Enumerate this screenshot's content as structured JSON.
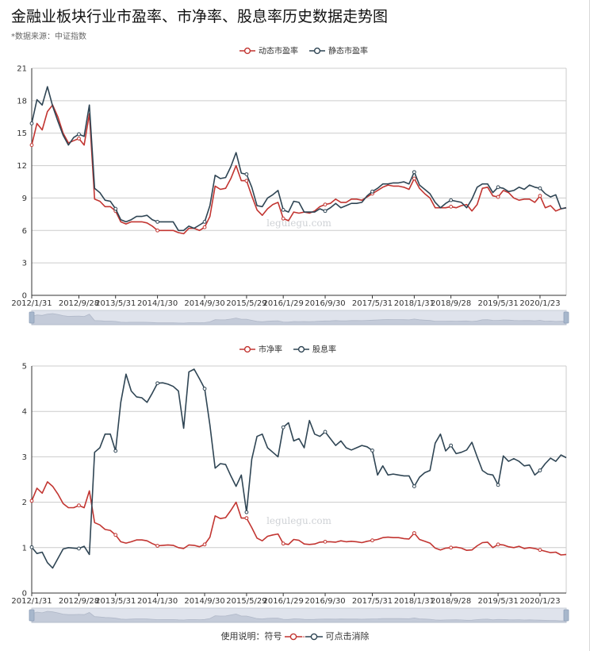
{
  "page": {
    "title": "金融业板块行业市盈率、市净率、股息率历史数据走势图",
    "source_note": "*数据来源：中证指数",
    "watermark": "legulegu.com",
    "usage_note_prefix": "使用说明：符号",
    "usage_note_suffix": "可点击消除"
  },
  "colors": {
    "red": "#c23531",
    "dark": "#2f4554",
    "grid": "#cccccc",
    "axis": "#333333",
    "zoom_fill": "#dfe3ec",
    "zoom_border": "#c7ccd6",
    "zoom_handle": "#a7b7cc"
  },
  "chart_data": [
    {
      "type": "line",
      "x_labels": [
        "2012/1/31",
        "2012/9/28",
        "2013/5/31",
        "2014/1/30",
        "2014/9/30",
        "2015/5/29",
        "2016/1/29",
        "2016/9/30",
        "2017/5/31",
        "2018/1/31",
        "2018/9/28",
        "2019/5/31",
        "2020/1/23"
      ],
      "ylim": [
        0,
        21
      ],
      "yticks": [
        0,
        3,
        6,
        9,
        12,
        15,
        18,
        21
      ],
      "grid": true,
      "legend_position": "top-center",
      "series": [
        {
          "name": "动态市盈率",
          "color": "#c23531",
          "values": [
            13.9,
            15.9,
            15.3,
            17.0,
            17.6,
            16.5,
            15.0,
            14.1,
            14.3,
            14.5,
            13.9,
            16.8,
            8.9,
            8.7,
            8.2,
            8.2,
            7.8,
            6.8,
            6.6,
            6.8,
            6.8,
            6.8,
            6.7,
            6.4,
            6.0,
            6.0,
            6.0,
            6.0,
            5.8,
            5.7,
            6.2,
            6.2,
            6.0,
            6.3,
            7.3,
            10.1,
            9.8,
            9.9,
            10.8,
            12.0,
            10.6,
            10.6,
            9.2,
            7.9,
            7.4,
            8.0,
            8.4,
            8.6,
            7.1,
            6.9,
            7.7,
            7.6,
            7.7,
            7.6,
            7.8,
            8.2,
            8.4,
            8.5,
            8.9,
            8.6,
            8.6,
            8.9,
            8.9,
            8.8,
            9.1,
            9.4,
            9.7,
            10.0,
            10.2,
            10.1,
            10.1,
            10.0,
            9.8,
            10.8,
            9.9,
            9.4,
            9.0,
            8.1,
            8.1,
            8.1,
            8.2,
            8.1,
            8.3,
            8.4,
            7.8,
            8.4,
            9.9,
            10.0,
            9.2,
            9.1,
            9.7,
            9.5,
            9.0,
            8.8,
            8.9,
            8.9,
            8.6,
            9.2,
            8.1,
            8.3,
            7.8,
            8.0,
            8.1
          ]
        },
        {
          "name": "静态市盈率",
          "color": "#2f4554",
          "values": [
            15.9,
            18.1,
            17.6,
            19.3,
            17.5,
            16.1,
            14.8,
            13.9,
            14.6,
            14.9,
            14.7,
            17.6,
            9.9,
            9.5,
            8.8,
            8.7,
            8.0,
            7.0,
            6.8,
            7.0,
            7.3,
            7.3,
            7.4,
            7.0,
            6.8,
            6.8,
            6.8,
            6.8,
            6.0,
            6.0,
            6.4,
            6.2,
            6.5,
            6.8,
            8.3,
            11.1,
            10.8,
            10.9,
            11.9,
            13.2,
            11.3,
            11.2,
            10.0,
            8.3,
            8.2,
            9.0,
            9.3,
            9.7,
            7.9,
            7.7,
            8.7,
            8.6,
            7.7,
            7.7,
            7.7,
            8.0,
            7.8,
            8.1,
            8.5,
            8.1,
            8.3,
            8.5,
            8.5,
            8.6,
            9.2,
            9.6,
            9.9,
            10.3,
            10.3,
            10.4,
            10.4,
            10.5,
            10.3,
            11.4,
            10.2,
            9.8,
            9.4,
            8.6,
            8.1,
            8.5,
            8.8,
            8.7,
            8.6,
            8.1,
            8.9,
            10.0,
            10.3,
            10.3,
            9.5,
            10.0,
            9.9,
            9.6,
            9.7,
            10.0,
            9.8,
            10.2,
            10.0,
            9.9,
            9.4,
            9.1,
            9.3,
            8.0,
            8.1
          ]
        }
      ]
    },
    {
      "type": "line",
      "x_labels": [
        "2012/1/31",
        "2012/9/28",
        "2013/5/31",
        "2014/1/30",
        "2014/9/30",
        "2015/5/29",
        "2016/1/29",
        "2016/9/30",
        "2017/5/31",
        "2018/1/31",
        "2018/9/28",
        "2019/5/31",
        "2020/1/23"
      ],
      "ylim": [
        0,
        5
      ],
      "yticks": [
        0,
        1,
        2,
        3,
        4,
        5
      ],
      "grid": true,
      "legend_position": "top-center",
      "series": [
        {
          "name": "市净率",
          "color": "#c23531",
          "values": [
            2.03,
            2.31,
            2.2,
            2.45,
            2.35,
            2.18,
            1.97,
            1.88,
            1.88,
            1.93,
            1.88,
            2.25,
            1.55,
            1.5,
            1.4,
            1.38,
            1.28,
            1.13,
            1.1,
            1.13,
            1.17,
            1.17,
            1.15,
            1.09,
            1.04,
            1.05,
            1.06,
            1.05,
            1.0,
            0.98,
            1.06,
            1.05,
            1.02,
            1.07,
            1.23,
            1.7,
            1.64,
            1.66,
            1.82,
            2.0,
            1.65,
            1.65,
            1.44,
            1.21,
            1.15,
            1.25,
            1.28,
            1.3,
            1.09,
            1.07,
            1.18,
            1.16,
            1.08,
            1.07,
            1.08,
            1.12,
            1.13,
            1.13,
            1.12,
            1.15,
            1.13,
            1.14,
            1.13,
            1.11,
            1.14,
            1.16,
            1.18,
            1.22,
            1.23,
            1.22,
            1.22,
            1.2,
            1.19,
            1.32,
            1.18,
            1.14,
            1.1,
            0.99,
            0.95,
            0.99,
            1.0,
            1.01,
            0.99,
            0.94,
            0.95,
            1.04,
            1.11,
            1.12,
            1.0,
            1.07,
            1.06,
            1.02,
            1.0,
            1.03,
            0.98,
            1.0,
            0.98,
            0.95,
            0.92,
            0.89,
            0.9,
            0.84,
            0.85
          ]
        },
        {
          "name": "股息率",
          "color": "#2f4554",
          "values": [
            1.01,
            0.87,
            0.9,
            0.67,
            0.55,
            0.76,
            0.97,
            1.0,
            0.99,
            0.98,
            1.03,
            0.85,
            3.1,
            3.2,
            3.5,
            3.5,
            3.13,
            4.2,
            4.82,
            4.45,
            4.32,
            4.3,
            4.2,
            4.4,
            4.62,
            4.63,
            4.6,
            4.55,
            4.45,
            3.63,
            4.87,
            4.93,
            4.72,
            4.5,
            3.7,
            2.75,
            2.85,
            2.83,
            2.58,
            2.35,
            2.6,
            1.78,
            2.95,
            3.45,
            3.5,
            3.2,
            3.1,
            3.0,
            3.65,
            3.75,
            3.35,
            3.4,
            3.2,
            3.8,
            3.5,
            3.45,
            3.55,
            3.4,
            3.25,
            3.35,
            3.2,
            3.15,
            3.2,
            3.25,
            3.22,
            3.14,
            2.6,
            2.8,
            2.6,
            2.62,
            2.6,
            2.58,
            2.58,
            2.35,
            2.55,
            2.65,
            2.7,
            3.3,
            3.5,
            3.13,
            3.25,
            3.07,
            3.1,
            3.15,
            3.32,
            3.0,
            2.7,
            2.62,
            2.6,
            2.38,
            3.02,
            2.9,
            2.96,
            2.9,
            2.8,
            2.82,
            2.6,
            2.7,
            2.85,
            2.97,
            2.9,
            3.04,
            2.98
          ]
        }
      ]
    }
  ]
}
